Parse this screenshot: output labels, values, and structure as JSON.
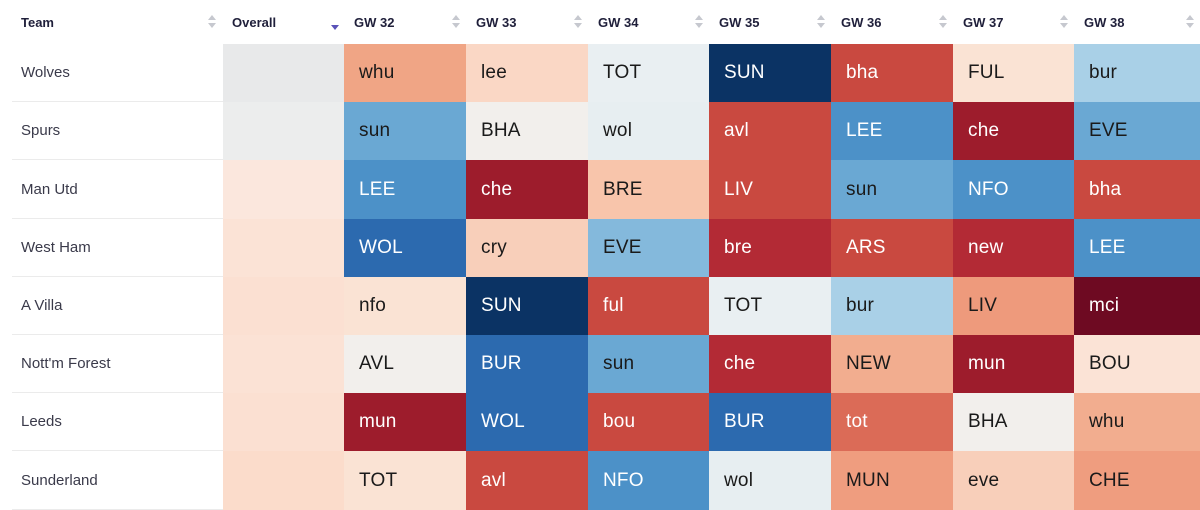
{
  "headers": {
    "team": "Team",
    "overall": "Overall",
    "gameweeks": [
      "GW 32",
      "GW 33",
      "GW 34",
      "GW 35",
      "GW 36",
      "GW 37",
      "GW 38"
    ]
  },
  "sort": {
    "active_column": "Overall",
    "direction": "descending"
  },
  "rows": [
    {
      "team": "Wolves",
      "overall_color": "#e8e9ea",
      "fixtures": [
        {
          "opp": "whu",
          "bg": "#f0a585",
          "fg": "#1a1a1a"
        },
        {
          "opp": "lee",
          "bg": "#fad7c5",
          "fg": "#1a1a1a"
        },
        {
          "opp": "TOT",
          "bg": "#e9eff2",
          "fg": "#1a1a1a"
        },
        {
          "opp": "SUN",
          "bg": "#0b3364",
          "fg": "#ffffff"
        },
        {
          "opp": "bha",
          "bg": "#c94940",
          "fg": "#ffffff"
        },
        {
          "opp": "FUL",
          "bg": "#fae3d4",
          "fg": "#1a1a1a"
        },
        {
          "opp": "bur",
          "bg": "#a9d0e7",
          "fg": "#1a1a1a"
        }
      ]
    },
    {
      "team": "Spurs",
      "overall_color": "#eceded",
      "fixtures": [
        {
          "opp": "sun",
          "bg": "#6aa8d3",
          "fg": "#1a1a1a"
        },
        {
          "opp": "BHA",
          "bg": "#f2efec",
          "fg": "#1a1a1a"
        },
        {
          "opp": "wol",
          "bg": "#e7eef1",
          "fg": "#1a1a1a"
        },
        {
          "opp": "avl",
          "bg": "#c94940",
          "fg": "#ffffff"
        },
        {
          "opp": "LEE",
          "bg": "#4c91c8",
          "fg": "#ffffff"
        },
        {
          "opp": "che",
          "bg": "#9d1c2c",
          "fg": "#ffffff"
        },
        {
          "opp": "EVE",
          "bg": "#6aa8d3",
          "fg": "#1a1a1a"
        }
      ]
    },
    {
      "team": "Man Utd",
      "overall_color": "#fbe7dd",
      "fixtures": [
        {
          "opp": "LEE",
          "bg": "#4c91c8",
          "fg": "#ffffff"
        },
        {
          "opp": "che",
          "bg": "#9d1c2c",
          "fg": "#ffffff"
        },
        {
          "opp": "BRE",
          "bg": "#f8c5ab",
          "fg": "#1a1a1a"
        },
        {
          "opp": "LIV",
          "bg": "#c94940",
          "fg": "#ffffff"
        },
        {
          "opp": "sun",
          "bg": "#6aa8d3",
          "fg": "#1a1a1a"
        },
        {
          "opp": "NFO",
          "bg": "#4c91c8",
          "fg": "#ffffff"
        },
        {
          "opp": "bha",
          "bg": "#c94940",
          "fg": "#ffffff"
        }
      ]
    },
    {
      "team": "West Ham",
      "overall_color": "#fbe3d6",
      "fixtures": [
        {
          "opp": "WOL",
          "bg": "#2c6aaf",
          "fg": "#ffffff"
        },
        {
          "opp": "cry",
          "bg": "#f8cfba",
          "fg": "#1a1a1a"
        },
        {
          "opp": "EVE",
          "bg": "#84b9dc",
          "fg": "#1a1a1a"
        },
        {
          "opp": "bre",
          "bg": "#b32a35",
          "fg": "#ffffff"
        },
        {
          "opp": "ARS",
          "bg": "#c94940",
          "fg": "#ffffff"
        },
        {
          "opp": "new",
          "bg": "#b32a35",
          "fg": "#ffffff"
        },
        {
          "opp": "LEE",
          "bg": "#4c91c8",
          "fg": "#ffffff"
        }
      ]
    },
    {
      "team": "A Villa",
      "overall_color": "#fbe0d2",
      "fixtures": [
        {
          "opp": "nfo",
          "bg": "#fae3d4",
          "fg": "#1a1a1a"
        },
        {
          "opp": "SUN",
          "bg": "#0b3364",
          "fg": "#ffffff"
        },
        {
          "opp": "ful",
          "bg": "#c94940",
          "fg": "#ffffff"
        },
        {
          "opp": "TOT",
          "bg": "#e9eff2",
          "fg": "#1a1a1a"
        },
        {
          "opp": "bur",
          "bg": "#a9d0e7",
          "fg": "#1a1a1a"
        },
        {
          "opp": "LIV",
          "bg": "#ee9a7c",
          "fg": "#1a1a1a"
        },
        {
          "opp": "mci",
          "bg": "#6e0a22",
          "fg": "#ffffff"
        }
      ]
    },
    {
      "team": "Nott'm Forest",
      "overall_color": "#fbe2d5",
      "fixtures": [
        {
          "opp": "AVL",
          "bg": "#f2efec",
          "fg": "#1a1a1a"
        },
        {
          "opp": "BUR",
          "bg": "#2c6aaf",
          "fg": "#ffffff"
        },
        {
          "opp": "sun",
          "bg": "#6aa8d3",
          "fg": "#1a1a1a"
        },
        {
          "opp": "che",
          "bg": "#b32a35",
          "fg": "#ffffff"
        },
        {
          "opp": "NEW",
          "bg": "#f2ad8f",
          "fg": "#1a1a1a"
        },
        {
          "opp": "mun",
          "bg": "#9d1c2c",
          "fg": "#ffffff"
        },
        {
          "opp": "BOU",
          "bg": "#fbe3d6",
          "fg": "#1a1a1a"
        }
      ]
    },
    {
      "team": "Leeds",
      "overall_color": "#fbe0d2",
      "fixtures": [
        {
          "opp": "mun",
          "bg": "#9d1c2c",
          "fg": "#ffffff"
        },
        {
          "opp": "WOL",
          "bg": "#2c6aaf",
          "fg": "#ffffff"
        },
        {
          "opp": "bou",
          "bg": "#c94940",
          "fg": "#ffffff"
        },
        {
          "opp": "BUR",
          "bg": "#2c6aaf",
          "fg": "#ffffff"
        },
        {
          "opp": "tot",
          "bg": "#db6b57",
          "fg": "#ffffff"
        },
        {
          "opp": "BHA",
          "bg": "#f2efec",
          "fg": "#1a1a1a"
        },
        {
          "opp": "whu",
          "bg": "#f2ad8f",
          "fg": "#1a1a1a"
        }
      ]
    },
    {
      "team": "Sunderland",
      "overall_color": "#fbdccb",
      "fixtures": [
        {
          "opp": "TOT",
          "bg": "#fae3d4",
          "fg": "#1a1a1a"
        },
        {
          "opp": "avl",
          "bg": "#c94940",
          "fg": "#ffffff"
        },
        {
          "opp": "NFO",
          "bg": "#4c91c8",
          "fg": "#ffffff"
        },
        {
          "opp": "wol",
          "bg": "#e7eef1",
          "fg": "#1a1a1a"
        },
        {
          "opp": "MUN",
          "bg": "#ef9d7f",
          "fg": "#1a1a1a"
        },
        {
          "opp": "eve",
          "bg": "#f8cfba",
          "fg": "#1a1a1a"
        },
        {
          "opp": "CHE",
          "bg": "#ef9d7f",
          "fg": "#1a1a1a"
        }
      ]
    }
  ]
}
